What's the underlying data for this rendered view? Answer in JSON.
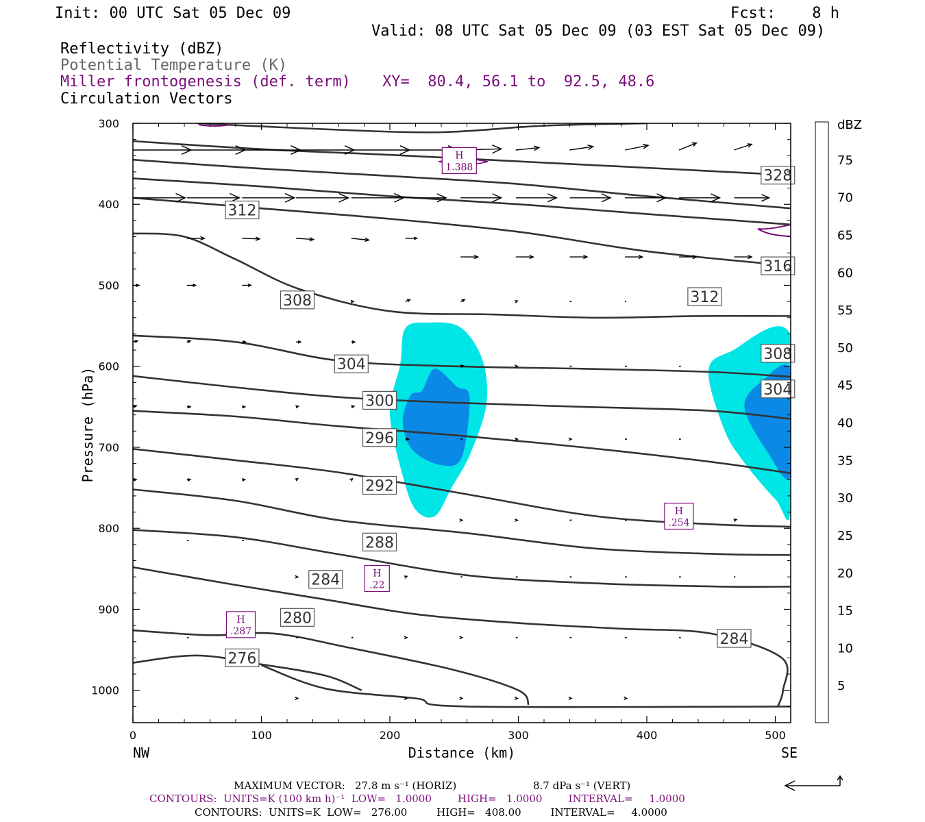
{
  "header": {
    "init": "Init: 00 UTC Sat 05 Dec 09",
    "fcst": "Fcst:    8 h",
    "valid": "Valid: 08 UTC Sat 05 Dec 09 (03 EST Sat 05 Dec 09)",
    "field1": "Reflectivity (dBZ)",
    "field2": "Potential Temperature (K)",
    "field3": "Miller frontogenesis (def. term)",
    "xy": "XY=  80.4, 56.1 to  92.5, 48.6",
    "field4": "Circulation Vectors"
  },
  "colors": {
    "theta": "#333333",
    "front": "#7a0e7a",
    "refl_5": "#00e5e5",
    "refl_10": "#0a8ae6"
  },
  "footer": {
    "max_vector_label": "MAXIMUM VECTOR:",
    "max_horiz": "27.8 m s⁻¹ (HORIZ)",
    "max_vert": "8.7 dPa s⁻¹ (VERT)",
    "contours_front": "CONTOURS:  UNITS=K (100 km h)⁻¹  LOW=   1.0000        HIGH=   1.0000        INTERVAL=     1.0000",
    "contours_theta": "CONTOURS:  UNITS=K  LOW=   276.00         HIGH=   408.00         INTERVAL=     4.0000"
  },
  "chart_data": {
    "type": "cross-section",
    "xlabel": "Distance (km)",
    "ylabel": "Pressure (hPa)",
    "xlim": [
      0,
      512
    ],
    "ylim": [
      1040,
      300
    ],
    "x_ticks": [
      0,
      100,
      200,
      300,
      400,
      500
    ],
    "y_ticks": [
      300,
      400,
      500,
      600,
      700,
      800,
      900,
      1000
    ],
    "x_end_labels": {
      "left": "NW",
      "right": "SE"
    },
    "colorbar": {
      "unit": "dBZ",
      "levels": [
        5,
        10,
        15,
        20,
        25,
        30,
        35,
        40,
        45,
        50,
        55,
        60,
        65,
        70,
        75
      ],
      "colors": [
        "#00e5e5",
        "#0a8ae6",
        "#0000d6",
        "#00e100",
        "#00ff00",
        "#19c819",
        "#0a820a",
        "#ffff00",
        "#e6be00",
        "#ff8c00",
        "#ff0000",
        "#dc0000",
        "#b40000",
        "#ff00ff",
        "#9955cc"
      ]
    },
    "theta_labels": [
      {
        "label": "328",
        "x": 502,
        "p": 364
      },
      {
        "label": "312",
        "x": 85,
        "p": 407
      },
      {
        "label": "316",
        "x": 502,
        "p": 476
      },
      {
        "label": "308",
        "x": 128,
        "p": 518
      },
      {
        "label": "312",
        "x": 445,
        "p": 514
      },
      {
        "label": "304",
        "x": 170,
        "p": 597
      },
      {
        "label": "308",
        "x": 502,
        "p": 584
      },
      {
        "label": "300",
        "x": 192,
        "p": 642
      },
      {
        "label": "304",
        "x": 502,
        "p": 628
      },
      {
        "label": "296",
        "x": 192,
        "p": 688
      },
      {
        "label": "292",
        "x": 192,
        "p": 747
      },
      {
        "label": "288",
        "x": 192,
        "p": 817
      },
      {
        "label": "284",
        "x": 150,
        "p": 863
      },
      {
        "label": "280",
        "x": 128,
        "p": 910
      },
      {
        "label": "284",
        "x": 468,
        "p": 936
      },
      {
        "label": "276",
        "x": 85,
        "p": 960
      }
    ],
    "theta_lines": [
      [
        [
          50,
          300
        ],
        [
          160,
          308
        ],
        [
          240,
          311
        ],
        [
          320,
          303
        ],
        [
          400,
          300
        ]
      ],
      [
        [
          0,
          322
        ],
        [
          100,
          332
        ],
        [
          200,
          339
        ],
        [
          300,
          347
        ],
        [
          400,
          355
        ],
        [
          512,
          364
        ]
      ],
      [
        [
          0,
          345
        ],
        [
          100,
          356
        ],
        [
          200,
          365
        ],
        [
          300,
          375
        ],
        [
          400,
          390
        ],
        [
          512,
          405
        ]
      ],
      [
        [
          0,
          368
        ],
        [
          100,
          378
        ],
        [
          200,
          390
        ],
        [
          300,
          400
        ],
        [
          400,
          412
        ],
        [
          512,
          425
        ]
      ],
      [
        [
          0,
          392
        ],
        [
          100,
          405
        ],
        [
          200,
          418
        ],
        [
          300,
          434
        ],
        [
          400,
          458
        ],
        [
          512,
          476
        ]
      ],
      [
        [
          0,
          436
        ],
        [
          40,
          440
        ],
        [
          80,
          468
        ],
        [
          130,
          505
        ],
        [
          200,
          532
        ],
        [
          280,
          536
        ],
        [
          360,
          540
        ],
        [
          440,
          538
        ],
        [
          512,
          538
        ]
      ],
      [
        [
          0,
          562
        ],
        [
          80,
          570
        ],
        [
          160,
          593
        ],
        [
          250,
          600
        ],
        [
          350,
          603
        ],
        [
          450,
          607
        ],
        [
          512,
          613
        ]
      ],
      [
        [
          0,
          612
        ],
        [
          80,
          626
        ],
        [
          160,
          638
        ],
        [
          250,
          645
        ],
        [
          350,
          650
        ],
        [
          450,
          655
        ],
        [
          512,
          665
        ]
      ],
      [
        [
          0,
          655
        ],
        [
          80,
          662
        ],
        [
          160,
          674
        ],
        [
          250,
          685
        ],
        [
          350,
          700
        ],
        [
          450,
          718
        ],
        [
          512,
          732
        ]
      ],
      [
        [
          0,
          702
        ],
        [
          80,
          716
        ],
        [
          160,
          731
        ],
        [
          260,
          758
        ],
        [
          360,
          785
        ],
        [
          450,
          795
        ],
        [
          512,
          798
        ]
      ],
      [
        [
          0,
          752
        ],
        [
          80,
          766
        ],
        [
          160,
          790
        ],
        [
          260,
          806
        ],
        [
          360,
          825
        ],
        [
          460,
          832
        ],
        [
          512,
          833
        ]
      ],
      [
        [
          0,
          802
        ],
        [
          80,
          811
        ],
        [
          160,
          832
        ],
        [
          260,
          858
        ],
        [
          360,
          868
        ],
        [
          460,
          872
        ],
        [
          512,
          872
        ]
      ],
      [
        [
          0,
          848
        ],
        [
          80,
          870
        ],
        [
          150,
          888
        ],
        [
          220,
          906
        ],
        [
          300,
          917
        ],
        [
          380,
          924
        ],
        [
          450,
          930
        ],
        [
          505,
          960
        ],
        [
          506,
          1000
        ],
        [
          502,
          1020
        ]
      ],
      [
        [
          0,
          926
        ],
        [
          60,
          932
        ],
        [
          110,
          930
        ],
        [
          170,
          948
        ],
        [
          250,
          975
        ],
        [
          300,
          1000
        ],
        [
          308,
          1018
        ]
      ],
      [
        [
          0,
          966
        ],
        [
          50,
          957
        ],
        [
          100,
          968
        ],
        [
          150,
          982
        ],
        [
          178,
          1000
        ]
      ],
      [
        [
          100,
          969
        ],
        [
          150,
          998
        ],
        [
          220,
          1010
        ],
        [
          260,
          1020
        ],
        [
          512,
          1020
        ]
      ]
    ],
    "reflectivity_areas": [
      {
        "dbz": 5,
        "points": [
          [
            212,
            553
          ],
          [
            230,
            546
          ],
          [
            255,
            552
          ],
          [
            272,
            592
          ],
          [
            275,
            648
          ],
          [
            262,
            710
          ],
          [
            248,
            750
          ],
          [
            235,
            785
          ],
          [
            220,
            777
          ],
          [
            210,
            735
          ],
          [
            200,
            658
          ],
          [
            208,
            598
          ]
        ]
      },
      {
        "dbz": 10,
        "points": [
          [
            225,
            630
          ],
          [
            235,
            603
          ],
          [
            252,
            625
          ],
          [
            262,
            638
          ],
          [
            256,
            712
          ],
          [
            240,
            722
          ],
          [
            218,
            704
          ],
          [
            210,
            670
          ],
          [
            216,
            636
          ]
        ]
      },
      {
        "dbz": 5,
        "points": [
          [
            465,
            582
          ],
          [
            512,
            562
          ],
          [
            512,
            776
          ],
          [
            500,
            764
          ],
          [
            475,
            717
          ],
          [
            460,
            677
          ],
          [
            448,
            606
          ]
        ]
      },
      {
        "dbz": 10,
        "points": [
          [
            490,
            618
          ],
          [
            512,
            605
          ],
          [
            512,
            735
          ],
          [
            494,
            706
          ],
          [
            476,
            650
          ]
        ]
      }
    ],
    "frontogenesis_highs": [
      {
        "label": "H",
        "value": "1.388",
        "x": 254,
        "p": 346
      },
      {
        "label": "H",
        "value": ".254",
        "x": 425,
        "p": 785
      },
      {
        "label": "H",
        "value": ".22",
        "x": 190,
        "p": 862
      },
      {
        "label": "H",
        "value": ".287",
        "x": 84,
        "p": 919
      }
    ],
    "vector_rows": [
      {
        "p": 333,
        "x": [
          0,
          42,
          85,
          127,
          170,
          212,
          255,
          298,
          340,
          383,
          425,
          468
        ],
        "u": [
          10,
          10,
          10,
          10,
          10,
          9,
          7,
          4,
          4,
          4,
          3,
          3
        ],
        "v": [
          0,
          0,
          0,
          0,
          0,
          0,
          0.2,
          0.4,
          0.6,
          0.8,
          1.2,
          1.0
        ]
      },
      {
        "p": 392,
        "x": [
          0,
          42,
          85,
          127,
          170,
          212,
          255,
          298,
          340,
          383,
          425,
          468
        ],
        "u": [
          9,
          9,
          9,
          9,
          9,
          7,
          7,
          7,
          7,
          7,
          7,
          6
        ],
        "v": [
          0,
          0,
          0,
          0,
          0,
          0,
          0,
          0,
          0,
          0,
          0,
          0
        ]
      },
      {
        "p": 442,
        "x": [
          42,
          85,
          127,
          170,
          212
        ],
        "u": [
          3,
          3,
          3,
          3,
          2
        ],
        "v": [
          0,
          -0.1,
          -0.2,
          -0.3,
          0
        ]
      },
      {
        "p": 465,
        "x": [
          255,
          298,
          340,
          383,
          425,
          468
        ],
        "u": [
          3,
          3,
          3,
          3,
          3,
          3
        ],
        "v": [
          0,
          0,
          0,
          0,
          0,
          0
        ]
      },
      {
        "p": 500,
        "x": [
          0,
          42,
          85
        ],
        "u": [
          1,
          1.5,
          1.5
        ],
        "v": [
          0,
          0,
          0
        ]
      },
      {
        "p": 520,
        "x": [
          170,
          212,
          255,
          298,
          340,
          383
        ],
        "u": [
          0.4,
          0.8,
          0.7,
          0.3,
          0.2,
          0.1
        ],
        "v": [
          0,
          0.3,
          0.3,
          0.1,
          0,
          0
        ]
      },
      {
        "p": 570,
        "x": [
          0,
          42,
          85,
          127,
          170
        ],
        "u": [
          0.8,
          0.6,
          0.6,
          0.8,
          0.6
        ],
        "v": [
          0.2,
          0.2,
          0,
          0,
          0
        ]
      },
      {
        "p": 600,
        "x": [
          255,
          298,
          340,
          383,
          425
        ],
        "u": [
          0.5,
          0.3,
          0.2,
          0.2,
          0.2
        ],
        "v": [
          0.1,
          0,
          0,
          0,
          0
        ]
      },
      {
        "p": 650,
        "x": [
          0,
          42,
          85,
          127,
          170
        ],
        "u": [
          0.6,
          0.6,
          0.5,
          0.4,
          0.5
        ],
        "v": [
          0.2,
          0,
          0,
          0.1,
          0.1
        ]
      },
      {
        "p": 690,
        "x": [
          212,
          255,
          298,
          340,
          383,
          425
        ],
        "u": [
          0.6,
          0.2,
          0.3,
          0.3,
          0.2,
          0.2
        ],
        "v": [
          0,
          0,
          0,
          0,
          0,
          0
        ]
      },
      {
        "p": 740,
        "x": [
          0,
          42,
          85,
          127,
          170
        ],
        "u": [
          0.6,
          0.6,
          0.5,
          0.3,
          0.2
        ],
        "v": [
          0,
          0,
          0,
          0.2,
          0.2
        ]
      },
      {
        "p": 790,
        "x": [
          255,
          298,
          340,
          383,
          468
        ],
        "u": [
          0.3,
          0.3,
          0.2,
          0.2,
          0.4
        ],
        "v": [
          0,
          0,
          0,
          0,
          0.1
        ]
      },
      {
        "p": 815,
        "x": [
          42,
          85
        ],
        "u": [
          0.2,
          0.2
        ],
        "v": [
          0,
          0
        ]
      },
      {
        "p": 860,
        "x": [
          127,
          212,
          255,
          298,
          340,
          383,
          425,
          468
        ],
        "u": [
          0.3,
          0.3,
          0.2,
          0.2,
          0.2,
          0.2,
          0.2,
          0.1
        ],
        "v": [
          0,
          0.1,
          0,
          0,
          0,
          0,
          0,
          0
        ]
      },
      {
        "p": 935,
        "x": [
          42,
          127,
          170,
          212,
          255,
          298,
          340,
          383,
          425
        ],
        "u": [
          0.2,
          0.2,
          0.2,
          0.3,
          0.3,
          0.2,
          0.2,
          0.2,
          0.2
        ],
        "v": [
          0,
          0,
          0,
          0,
          0,
          0,
          0,
          0,
          0
        ]
      },
      {
        "p": 1010,
        "x": [
          127,
          212,
          255,
          298,
          340,
          383
        ],
        "u": [
          0.3,
          0.3,
          0.3,
          0.3,
          0.3,
          0.3
        ],
        "v": [
          0,
          0,
          0,
          0,
          0,
          0
        ]
      }
    ]
  }
}
